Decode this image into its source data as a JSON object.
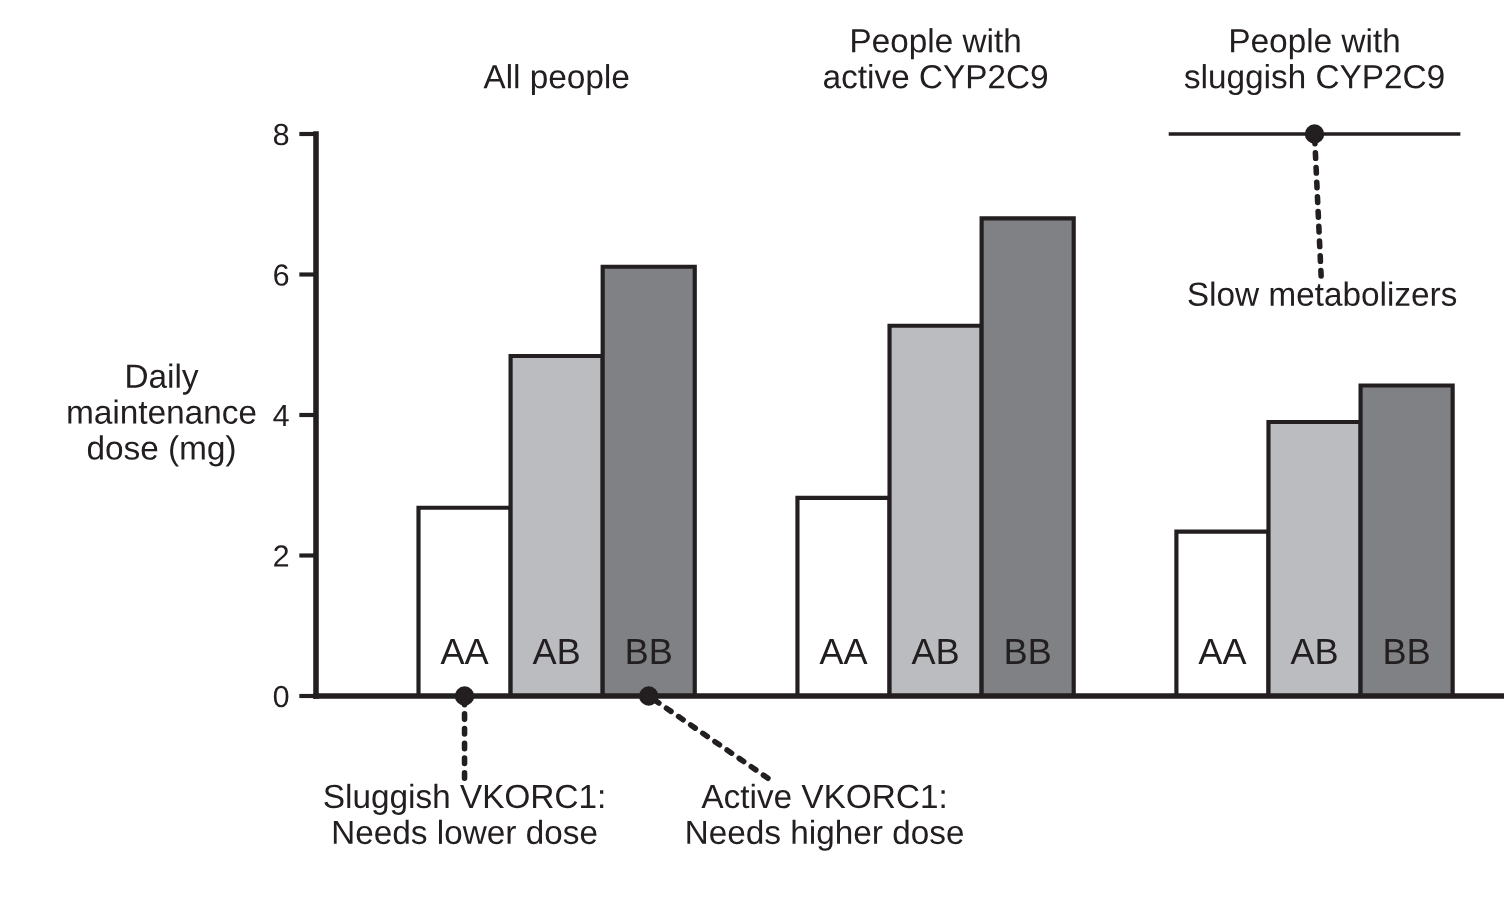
{
  "chart_data": {
    "type": "bar",
    "categories": [
      "All people",
      "People with\nactive CYP2C9",
      "People with\nsluggish CYP2C9"
    ],
    "series": [
      {
        "name": "AA",
        "color": "#ffffff",
        "values": [
          2.68,
          2.82,
          2.34
        ]
      },
      {
        "name": "AB",
        "color": "#bbbcc0",
        "values": [
          4.84,
          5.27,
          3.9
        ]
      },
      {
        "name": "BB",
        "color": "#808185",
        "values": [
          6.11,
          6.8,
          4.42
        ]
      }
    ],
    "ylabel": "Daily\nmaintenance\ndose (mg)",
    "ylim": [
      0,
      8
    ],
    "yticks": [
      0,
      2,
      4,
      6,
      8
    ],
    "annotations": [
      "Sluggish VKORC1:\nNeeds lower dose",
      "Active VKORC1:\nNeeds higher dose",
      "Slow metabolizers"
    ],
    "legend": false
  }
}
